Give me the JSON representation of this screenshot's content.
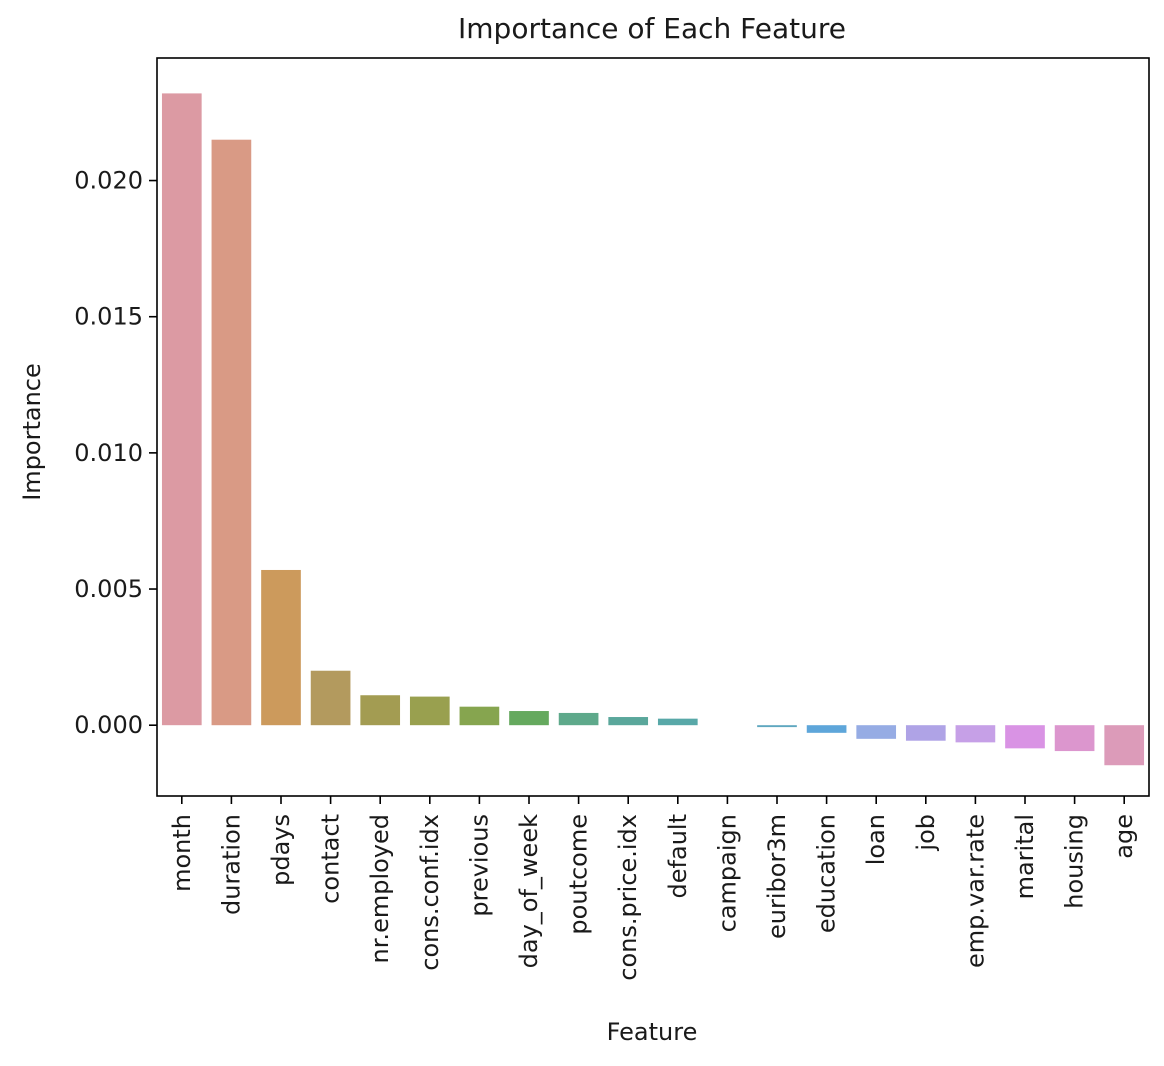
{
  "chart_data": {
    "type": "bar",
    "title": "Importance of Each Feature",
    "xlabel": "Feature",
    "ylabel": "Importance",
    "ylim": [
      -0.0026,
      0.0245
    ],
    "yticks": [
      "0.000",
      "0.005",
      "0.010",
      "0.015",
      "0.020"
    ],
    "grid": false,
    "legend": "none",
    "categories": [
      "month",
      "duration",
      "pdays",
      "contact",
      "nr.employed",
      "cons.conf.idx",
      "previous",
      "day_of_week",
      "poutcome",
      "cons.price.idx",
      "default",
      "campaign",
      "euribor3m",
      "education",
      "loan",
      "job",
      "emp.var.rate",
      "marital",
      "housing",
      "age"
    ],
    "values": [
      0.0232,
      0.0215,
      0.0057,
      0.002,
      0.0011,
      0.00105,
      0.00068,
      0.00052,
      0.00045,
      0.0003,
      0.00024,
      0.0,
      -7e-05,
      -0.00028,
      -0.0005,
      -0.00057,
      -0.00063,
      -0.00085,
      -0.00095,
      -0.00147
    ],
    "colors": [
      "#dc9aa3",
      "#d99a85",
      "#cc9a5c",
      "#b39a5e",
      "#a39c52",
      "#99a04f",
      "#86a54f",
      "#65a95e",
      "#5ea98b",
      "#5aa79b",
      "#58a8a8",
      "#5aa7b5",
      "#5fa7bf",
      "#5ea6da",
      "#96ace4",
      "#afa3e6",
      "#c6a0e7",
      "#d993e4",
      "#dc96ce",
      "#dc9bb9"
    ]
  }
}
